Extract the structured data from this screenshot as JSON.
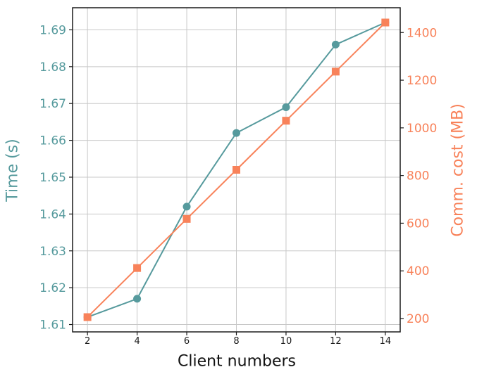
{
  "chart_data": {
    "type": "line",
    "title": "",
    "xlabel": "Client numbers",
    "x": [
      2,
      4,
      6,
      8,
      10,
      12,
      14
    ],
    "x_tick_labels": [
      "2",
      "4",
      "6",
      "8",
      "10",
      "12",
      "14"
    ],
    "xlim": [
      1.4,
      14.6
    ],
    "grid": true,
    "legend": false,
    "left_axis": {
      "label": "Time (s)",
      "color": "#569a9d",
      "ticks": [
        1.61,
        1.62,
        1.63,
        1.64,
        1.65,
        1.66,
        1.67,
        1.68,
        1.69
      ],
      "tick_labels": [
        "1.61",
        "1.62",
        "1.63",
        "1.64",
        "1.65",
        "1.66",
        "1.67",
        "1.68",
        "1.69"
      ],
      "lim": [
        1.608,
        1.696
      ],
      "gridlines": true
    },
    "right_axis": {
      "label": "Comm. cost (MB)",
      "color": "#f8825a",
      "ticks": [
        200,
        400,
        600,
        800,
        1000,
        1200,
        1400
      ],
      "tick_labels": [
        "200",
        "400",
        "600",
        "800",
        "1000",
        "1200",
        "1400"
      ],
      "lim": [
        144,
        1504
      ],
      "gridlines": false
    },
    "series": [
      {
        "name": "Time (s)",
        "axis": "left",
        "marker": "circle",
        "color": "#569a9d",
        "values": [
          1.612,
          1.617,
          1.642,
          1.662,
          1.669,
          1.686,
          1.692
        ]
      },
      {
        "name": "Comm. cost (MB)",
        "axis": "right",
        "marker": "square",
        "color": "#f8825a",
        "values": [
          206,
          412,
          618,
          824,
          1030,
          1236,
          1442
        ]
      }
    ]
  },
  "colors": {
    "background": "#ffffff",
    "grid": "#c8c8c8",
    "spine": "#1a1a1a",
    "tick": "#1a1a1a",
    "x_tick_label": "#1a1a1a"
  }
}
